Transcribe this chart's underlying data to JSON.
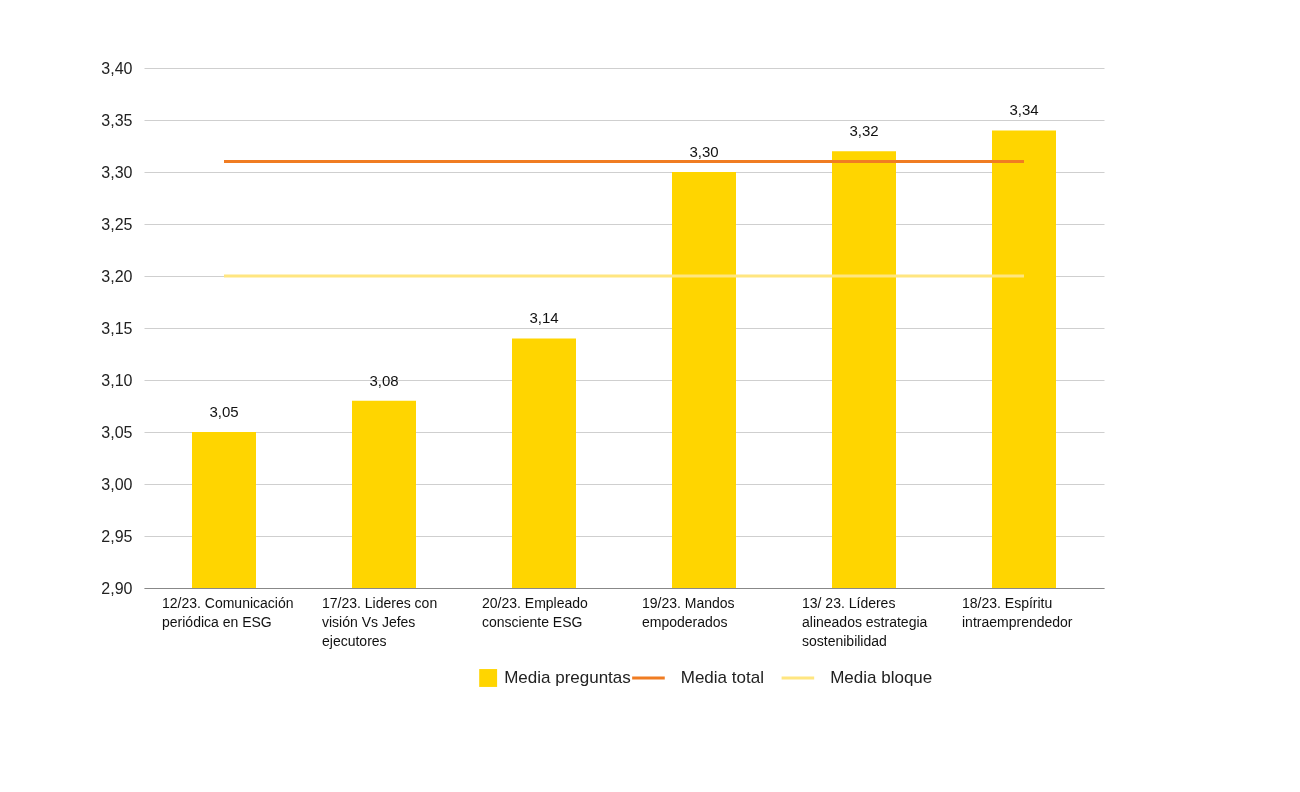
{
  "chart_data": {
    "type": "bar",
    "categories": [
      "12/23. Comunicación periódica en ESG",
      "17/23. Lideres con visión Vs Jefes ejecutores",
      "20/23. Empleado consciente ESG",
      "19/23. Mandos empoderados",
      "13/ 23. Líderes alineados estrategia sostenibilidad",
      "18/23. Espíritu intraemprendedor"
    ],
    "series": [
      {
        "name": "Media preguntas",
        "color": "#ffd500",
        "values": [
          3.05,
          3.08,
          3.14,
          3.3,
          3.32,
          3.34
        ]
      }
    ],
    "value_labels": [
      "3,05",
      "3,08",
      "3,14",
      "3,30",
      "3,32",
      "3,34"
    ],
    "ref_lines": [
      {
        "axis": "y",
        "value": 3.31,
        "label": "Media total",
        "color": "#f07c22"
      },
      {
        "axis": "y",
        "value": 3.2,
        "label": "Media bloque",
        "color": "#ffe680"
      }
    ],
    "ylim": [
      2.9,
      3.4
    ],
    "yticks": [
      {
        "value": 2.9,
        "label": "2,90"
      },
      {
        "value": 2.95,
        "label": "2,95"
      },
      {
        "value": 3.0,
        "label": "3,00"
      },
      {
        "value": 3.05,
        "label": "3,05"
      },
      {
        "value": 3.1,
        "label": "3,10"
      },
      {
        "value": 3.15,
        "label": "3,15"
      },
      {
        "value": 3.2,
        "label": "3,20"
      },
      {
        "value": 3.25,
        "label": "3,25"
      },
      {
        "value": 3.3,
        "label": "3,30"
      },
      {
        "value": 3.35,
        "label": "3,35"
      },
      {
        "value": 3.4,
        "label": "3,40"
      }
    ],
    "grid": "y",
    "legend": "bottom"
  }
}
